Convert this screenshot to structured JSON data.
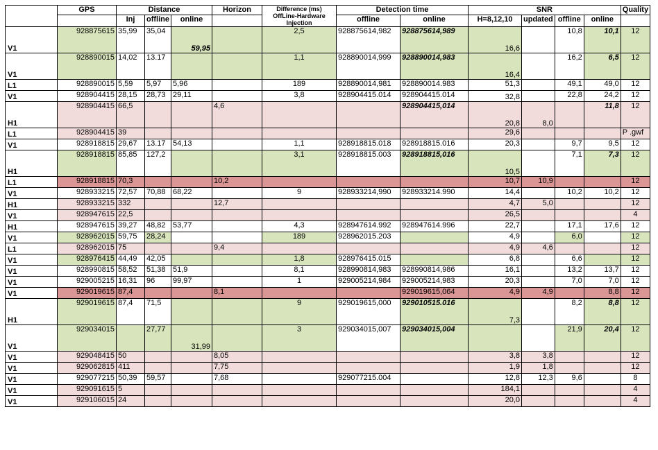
{
  "headers": {
    "gps": "GPS",
    "distance": "Distance",
    "inj": "Inj",
    "offline": "offline",
    "online": "online",
    "horizon": "Horizon",
    "difference": "Difference (ms) OffLine-Hardware Injection",
    "detection_time": "Detection time",
    "snr": "SNR",
    "h_label": "H=8,12,10",
    "updated": "updated",
    "quality": "Quality"
  },
  "rows": [
    {
      "det": "V1",
      "gps": "928875615",
      "inj": "35,99",
      "doff": "35,04",
      "don": "59,95",
      "hor": "",
      "diff": "2,5",
      "toff": "928875614,982",
      "ton": "928875614,989",
      "h": "16,6",
      "upd": "",
      "soff": "10,8",
      "son": "10,1",
      "q": "12"
    },
    {
      "det": "V1",
      "gps": "928890015",
      "inj": "14,02",
      "doff": "13.17",
      "don": "",
      "hor": "",
      "diff": "1,1",
      "toff": "928890014,999",
      "ton": "928890014,983",
      "h": "16,4",
      "upd": "",
      "soff": "16,2",
      "son": "6,5",
      "q": "12"
    },
    {
      "det": "L1",
      "gps": "928890015",
      "inj": "5,59",
      "doff": "5,97",
      "don": "5,96",
      "hor": "",
      "diff": "189",
      "toff": "928890014,981",
      "ton": "928890014.983",
      "h": "51,3",
      "upd": "",
      "soff": "49,1",
      "son": "49,0",
      "q": "12"
    },
    {
      "det": "V1",
      "gps": "928904415",
      "inj": "28,15",
      "doff": "28,73",
      "don": "29,11",
      "hor": "",
      "diff": "3,8",
      "toff": "928904415.014",
      "ton": "928904415.014",
      "h": "32,8",
      "upd": "",
      "soff": "22,8",
      "son": "24,2",
      "q": "12"
    },
    {
      "det": "H1",
      "gps": "928904415",
      "inj": "66,5",
      "doff": "",
      "don": "",
      "hor": "4,6",
      "diff": "",
      "toff": "",
      "ton": "928904415,014",
      "h": "20,8",
      "upd": "8,0",
      "soff": "",
      "son": "11,8",
      "q": "12"
    },
    {
      "det": "L1",
      "gps": "928904415",
      "inj": "39",
      "doff": "",
      "don": "",
      "hor": "",
      "diff": "",
      "toff": "",
      "ton": "",
      "h": "29,6",
      "upd": "",
      "soff": "",
      "son": "",
      "q": "P .gwf"
    },
    {
      "det": "V1",
      "gps": "928918815",
      "inj": "29,67",
      "doff": "13.17",
      "don": "54,13",
      "hor": "",
      "diff": "1,1",
      "toff": "928918815.018",
      "ton": "928918815.016",
      "h": "20,3",
      "upd": "",
      "soff": "9,7",
      "son": "9,5",
      "q": "12"
    },
    {
      "det": "H1",
      "gps": "928918815",
      "inj": "85,85",
      "doff": "127,2",
      "don": "",
      "hor": "",
      "diff": "3,1",
      "toff": "928918815.003",
      "ton": "928918815,016",
      "h": "10,5",
      "upd": "",
      "soff": "7,1",
      "son": "7,3",
      "q": "12"
    },
    {
      "det": "L1",
      "gps": "928918815",
      "inj": "70,3",
      "doff": "",
      "don": "",
      "hor": "10,2",
      "diff": "",
      "toff": "",
      "ton": "",
      "h": "10,7",
      "upd": "10,9",
      "soff": "",
      "son": "",
      "q": "12"
    },
    {
      "det": "V1",
      "gps": "928933215",
      "inj": "72,57",
      "doff": "70,88",
      "don": "68,22",
      "hor": "",
      "diff": "9",
      "toff": "928933214,990",
      "ton": "928933214.990",
      "h": "14,4",
      "upd": "",
      "soff": "10,2",
      "son": "10,2",
      "q": "12"
    },
    {
      "det": "H1",
      "gps": "928933215",
      "inj": "332",
      "doff": "",
      "don": "",
      "hor": "12,7",
      "diff": "",
      "toff": "",
      "ton": "",
      "h": "4,7",
      "upd": "5,0",
      "soff": "",
      "son": "",
      "q": "12"
    },
    {
      "det": "V1",
      "gps": "928947615",
      "inj": "22,5",
      "doff": "",
      "don": "",
      "hor": "",
      "diff": "",
      "toff": "",
      "ton": "",
      "h": "26,5",
      "upd": "",
      "soff": "",
      "son": "",
      "q": "4"
    },
    {
      "det": "H1",
      "gps": "928947615",
      "inj": "39,27",
      "doff": "48,82",
      "don": "53,77",
      "hor": "",
      "diff": "4,3",
      "toff": "928947614.992",
      "ton": "928947614.996",
      "h": "22,7",
      "upd": "",
      "soff": "17,1",
      "son": "17,6",
      "q": "12"
    },
    {
      "det": "V1",
      "gps": "928962015",
      "inj": "59,75",
      "doff": "28,24",
      "don": "",
      "hor": "",
      "diff": "189",
      "toff": "928962015.203",
      "ton": "",
      "h": "4,9",
      "upd": "",
      "soff": "6,0",
      "son": "",
      "q": "12"
    },
    {
      "det": "L1",
      "gps": "928962015",
      "inj": "75",
      "doff": "",
      "don": "",
      "hor": "9,4",
      "diff": "",
      "toff": "",
      "ton": "",
      "h": "4,9",
      "upd": "4,6",
      "soff": "",
      "son": "",
      "q": "12"
    },
    {
      "det": "V1",
      "gps": "928976415",
      "inj": "44,49",
      "doff": "42,05",
      "don": "",
      "hor": "",
      "diff": "1,8",
      "toff": "928976415.015",
      "ton": "",
      "h": "6,8",
      "upd": "",
      "soff": "6,6",
      "son": "",
      "q": "12"
    },
    {
      "det": "V1",
      "gps": "928990815",
      "inj": "58,52",
      "doff": "51,38",
      "don": "51,9",
      "hor": "",
      "diff": "8,1",
      "toff": "928990814,983",
      "ton": "928990814,986",
      "h": "16,1",
      "upd": "",
      "soff": "13,2",
      "son": "13,7",
      "q": "12"
    },
    {
      "det": "V1",
      "gps": "929005215",
      "inj": "16,31",
      "doff": "96",
      "don": "99,97",
      "hor": "",
      "diff": "1",
      "toff": "929005214,984",
      "ton": "929005214,983",
      "h": "20,3",
      "upd": "",
      "soff": "7,0",
      "son": "7,0",
      "q": "12"
    },
    {
      "det": "V1",
      "gps": "929019615",
      "inj": "87,4",
      "doff": "",
      "don": "",
      "hor": "8,1",
      "diff": "",
      "toff": "",
      "ton": "929019615,064",
      "h": "4,9",
      "upd": "4,9",
      "soff": "",
      "son": "8,8",
      "q": "12"
    },
    {
      "det": "H1",
      "gps": "929019615",
      "inj": "87,4",
      "doff": "71,5",
      "don": "",
      "hor": "",
      "diff": "9",
      "toff": "929019615,000",
      "ton": "929010515.016",
      "h": "7,3",
      "upd": "",
      "soff": "8,2",
      "son": "8,8",
      "q": "12"
    },
    {
      "det": "V1",
      "gps": "929034015",
      "inj": "",
      "doff": "27,77",
      "don": "31,99",
      "hor": "",
      "diff": "3",
      "toff": "929034015,007",
      "ton": "929034015,004",
      "h": "",
      "upd": "",
      "soff": "21,9",
      "son": "20,4",
      "q": "12"
    },
    {
      "det": "V1",
      "gps": "929048415",
      "inj": "50",
      "doff": "",
      "don": "",
      "hor": "8,05",
      "diff": "",
      "toff": "",
      "ton": "",
      "h": "3,8",
      "upd": "3,8",
      "soff": "",
      "son": "",
      "q": "12"
    },
    {
      "det": "V1",
      "gps": "929062815",
      "inj": "411",
      "doff": "",
      "don": "",
      "hor": "7,75",
      "diff": "",
      "toff": "",
      "ton": "",
      "h": "1,9",
      "upd": "1,8",
      "soff": "",
      "son": "",
      "q": "12"
    },
    {
      "det": "V1",
      "gps": "929077215",
      "inj": "50,39",
      "doff": "59,57",
      "don": "",
      "hor": "7,68",
      "diff": "",
      "toff": "929077215.004",
      "ton": "",
      "h": "12,8",
      "upd": "12,3",
      "soff": "9,6",
      "son": "",
      "q": "8"
    },
    {
      "det": "V1",
      "gps": "929091615",
      "inj": "5",
      "doff": "",
      "don": "",
      "hor": "",
      "diff": "",
      "toff": "",
      "ton": "",
      "h": "184,1",
      "upd": "",
      "soff": "",
      "son": "",
      "q": "4"
    },
    {
      "det": "V1",
      "gps": "929106015",
      "inj": "24",
      "doff": "",
      "don": "",
      "hor": "",
      "diff": "",
      "toff": "",
      "ton": "",
      "h": "20,0",
      "upd": "",
      "soff": "",
      "son": "",
      "q": "4"
    }
  ]
}
